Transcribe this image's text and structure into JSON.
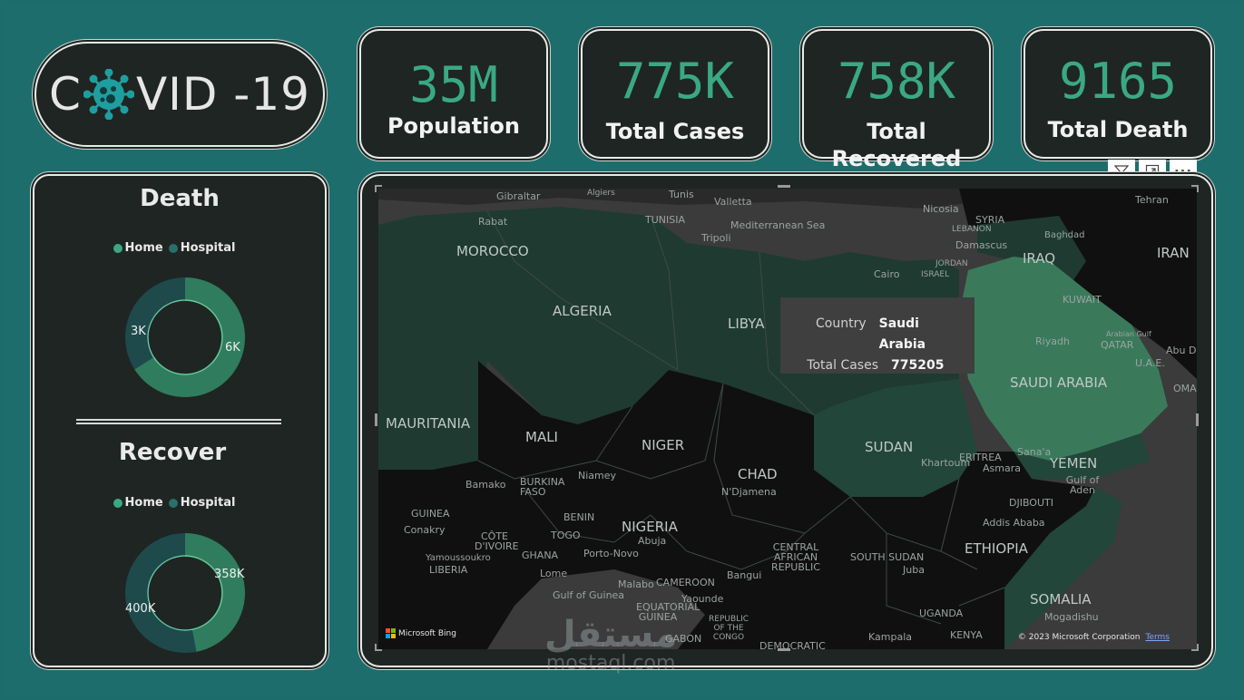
{
  "colors": {
    "background": "#1e6d6d",
    "card": "#1f2522",
    "accent": "#3aa983",
    "home": "#2f7d5e",
    "hospital": "#1e4a4c",
    "highlight": "#3a7a5b"
  },
  "logo": {
    "prefix": "C",
    "suffix": "VID -19",
    "icon": "virus-icon"
  },
  "kpis": [
    {
      "value": "35M",
      "label": "Population"
    },
    {
      "value": "775K",
      "label": "Total Cases"
    },
    {
      "value": "758K",
      "label": "Total Recovered"
    },
    {
      "value": "9165",
      "label": "Total Death"
    }
  ],
  "death": {
    "title": "Death",
    "legend": [
      "Home",
      "Hospital"
    ],
    "values": {
      "home": "6K",
      "hospital": "3K"
    },
    "home_fraction": 0.66
  },
  "recover": {
    "title": "Recover",
    "legend": [
      "Home",
      "Hospital"
    ],
    "values": {
      "home": "358K",
      "hospital": "400K"
    },
    "home_fraction": 0.47
  },
  "toolbar": {
    "filter_icon": "filter-icon",
    "focus_icon": "focus-mode-icon",
    "more_label": "···"
  },
  "map": {
    "tooltip": {
      "country_key": "Country",
      "country_val": "Saudi Arabia",
      "cases_key": "Total Cases",
      "cases_val": "775205"
    },
    "bing_label": "Microsoft Bing",
    "copyright": "© 2023 Microsoft Corporation",
    "terms": "Terms",
    "labels": {
      "morocco": "MOROCCO",
      "algeria": "ALGERIA",
      "libya": "LIBYA",
      "mauritania": "MAURITANIA",
      "mali": "MALI",
      "niger": "NIGER",
      "chad": "CHAD",
      "sudan": "SUDAN",
      "nigeria": "NIGERIA",
      "ethiopia": "ETHIOPIA",
      "somalia": "SOMALIA",
      "saudi": "SAUDI ARABIA",
      "yemen": "YEMEN",
      "iraq": "IRAQ",
      "iran": "IRAN",
      "syria": "SYRIA",
      "tunisia": "TUNISIA",
      "eritrea": "ERITREA",
      "djibouti": "DJIBOUTI",
      "guinea": "GUINEA",
      "burkina": "BURKINA FASO",
      "benin": "BENIN",
      "togo": "TOGO",
      "ghana": "GHANA",
      "cote": "CÔTE D'IVOIRE",
      "liberia": "LIBERIA",
      "cameroon": "CAMEROON",
      "car": "CENTRAL AFRICAN REPUBLIC",
      "south_sudan": "SOUTH SUDAN",
      "uganda": "UGANDA",
      "kenya": "KENYA",
      "kuwait": "KUWAIT",
      "qatar": "QATAR",
      "uae": "U.A.E.",
      "oman": "OMA",
      "lebanon": "LEBANON",
      "jordan": "JORDAN",
      "israel": "ISRAEL",
      "eq_guinea": "EQUATORIAL GUINEA",
      "gabon": "GABON",
      "congo": "REPUBLIC OF THE CONGO",
      "dem": "DEMOCRATIC",
      "rabat": "Rabat",
      "algiers": "Algiers",
      "tunis": "Tunis",
      "valletta": "Valletta",
      "tripoli": "Tripoli",
      "med_sea": "Mediterranean Sea",
      "gibraltar": "Gibraltar",
      "nicosia": "Nicosia",
      "damascus": "Damascus",
      "baghdad": "Baghdad",
      "tehran": "Tehran",
      "cairo": "Cairo",
      "riyadh": "Riyadh",
      "arabian_gulf": "Arabian Gulf",
      "abu_dhabi": "Abu Dha",
      "khartoum": "Khartoum",
      "asmara": "Asmara",
      "sanaa": "Sana'a",
      "gulf_aden": "Gulf of Aden",
      "addis": "Addis Ababa",
      "mogadishu": "Mogadishu",
      "juba": "Juba",
      "kampala": "Kampala",
      "bangui": "Bangui",
      "yaounde": "Yaounde",
      "malabo": "Malabo",
      "gulf_guinea": "Gulf of Guinea",
      "lome": "Lome",
      "porto": "Porto-Novo",
      "abuja": "Abuja",
      "niamey": "Niamey",
      "ndjamena": "N'Djamena",
      "bamako": "Bamako",
      "conakry": "Conakry",
      "yamoussoukro": "Yamoussoukro"
    }
  },
  "watermark": {
    "arabic": "مستقل",
    "latin": "mostaql.com"
  }
}
